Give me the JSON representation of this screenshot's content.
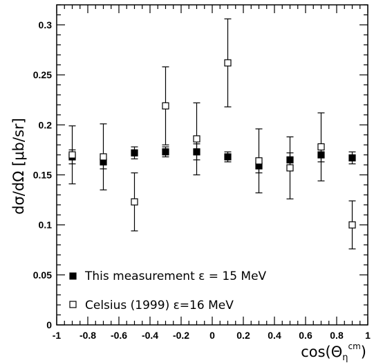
{
  "chart_data": {
    "type": "scatter",
    "xlabel": "cos(Θη^cm)",
    "xlabel_parts": {
      "prefix": "cos(",
      "theta": "Θ",
      "eta": "η",
      "sup": "cm",
      "suffix": ")"
    },
    "ylabel": "dσ/dΩ [μb/sr]",
    "xlim": [
      -1,
      1
    ],
    "ylim": [
      0,
      0.32
    ],
    "x_ticks": [
      "-1",
      "-0.8",
      "-0.6",
      "-0.4",
      "-0.2",
      "0",
      "0.2",
      "0.4",
      "0.6",
      "0.8",
      "1"
    ],
    "y_ticks": [
      "0",
      "0.05",
      "0.1",
      "0.15",
      "0.2",
      "0.25",
      "0.3"
    ],
    "grid": false,
    "legend_position": "bottom-left",
    "series": [
      {
        "name": "This measurement ε = 15 MeV",
        "marker": "filled-square",
        "color": "#000000",
        "x": [
          -0.9,
          -0.7,
          -0.5,
          -0.3,
          -0.1,
          0.1,
          0.3,
          0.5,
          0.7,
          0.9
        ],
        "y": [
          0.168,
          0.163,
          0.172,
          0.173,
          0.173,
          0.168,
          0.159,
          0.165,
          0.17,
          0.167
        ],
        "y_low": [
          0.161,
          0.156,
          0.166,
          0.168,
          0.165,
          0.163,
          0.152,
          0.158,
          0.163,
          0.161
        ],
        "y_high": [
          0.175,
          0.17,
          0.178,
          0.178,
          0.181,
          0.173,
          0.166,
          0.172,
          0.177,
          0.173
        ]
      },
      {
        "name": "Celsius (1999) ε=16 MeV",
        "marker": "open-square",
        "color": "#000000",
        "x": [
          -0.9,
          -0.7,
          -0.5,
          -0.3,
          -0.1,
          0.1,
          0.3,
          0.5,
          0.7,
          0.9
        ],
        "y": [
          0.17,
          0.168,
          0.123,
          0.219,
          0.186,
          0.262,
          0.164,
          0.157,
          0.178,
          0.1
        ],
        "y_low": [
          0.141,
          0.135,
          0.094,
          0.18,
          0.15,
          0.218,
          0.132,
          0.126,
          0.144,
          0.076
        ],
        "y_high": [
          0.199,
          0.201,
          0.152,
          0.258,
          0.222,
          0.306,
          0.196,
          0.188,
          0.212,
          0.124
        ]
      }
    ]
  }
}
